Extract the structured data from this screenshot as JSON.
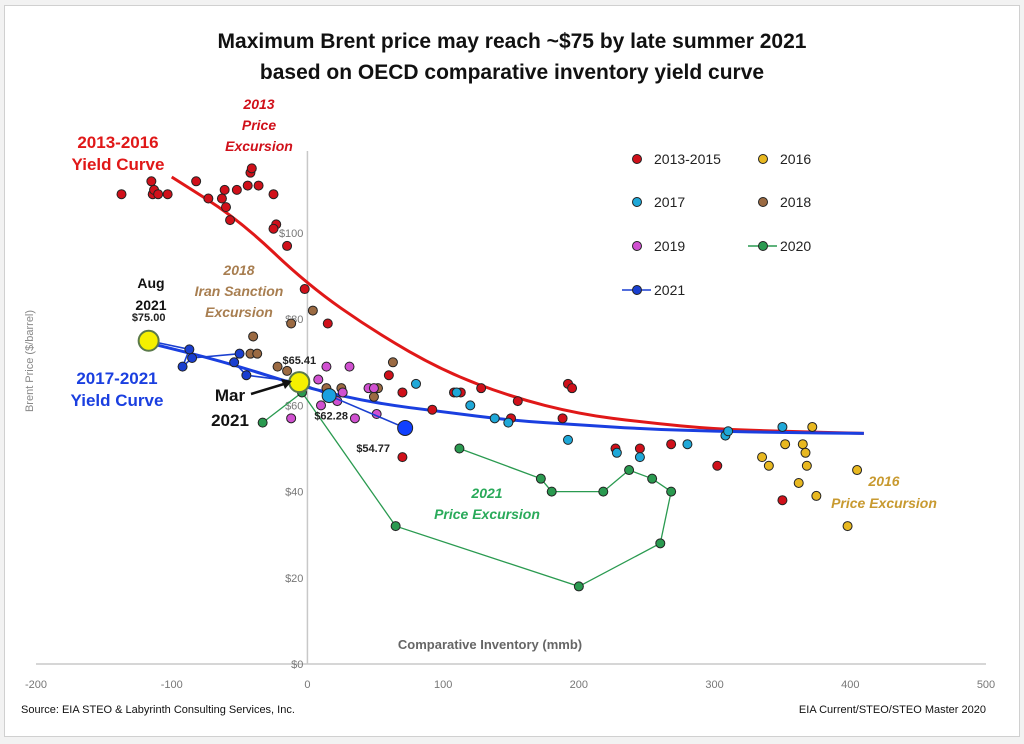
{
  "chart_data": {
    "type": "scatter",
    "title": "Maximum Brent price may reach ~$75 by late summer 2021",
    "subtitle": "based on OECD comparative inventory yield curve",
    "xlabel": "Comparative Inventory (mmb)",
    "ylabel": "Brent Price ($/barrel)",
    "xlim": [
      -200,
      500
    ],
    "ylim": [
      0,
      120
    ],
    "x_ticks": [
      -200,
      -100,
      0,
      100,
      200,
      300,
      400,
      500
    ],
    "x_tick_labels": [
      "-200",
      "-100",
      "0",
      "100",
      "200",
      "300",
      "400",
      "500"
    ],
    "y_ticks": [
      0,
      20,
      40,
      60,
      80,
      100
    ],
    "y_tick_labels": [
      "$0",
      "$20",
      "$40",
      "$60",
      "$80",
      "$100"
    ],
    "grid": false,
    "legend_position": "top-right",
    "series": [
      {
        "name": "2013-2015",
        "kind": "points",
        "color": "#d0101a",
        "points": [
          [
            -137,
            109
          ],
          [
            -115,
            112
          ],
          [
            -114,
            109
          ],
          [
            -113,
            110
          ],
          [
            -110,
            109
          ],
          [
            -103,
            109
          ],
          [
            -82,
            112
          ],
          [
            -73,
            108
          ],
          [
            -63,
            108
          ],
          [
            -61,
            110
          ],
          [
            -60,
            106
          ],
          [
            -57,
            103
          ],
          [
            -52,
            110
          ],
          [
            -44,
            111
          ],
          [
            -42,
            114
          ],
          [
            -41,
            115
          ],
          [
            -36,
            111
          ],
          [
            -25,
            109
          ],
          [
            -23,
            102
          ],
          [
            -25,
            101
          ],
          [
            -15,
            97
          ],
          [
            -2,
            87
          ],
          [
            15,
            79
          ],
          [
            60,
            67
          ],
          [
            70,
            63
          ],
          [
            92,
            59
          ],
          [
            108,
            63
          ],
          [
            113,
            63
          ],
          [
            128,
            64
          ],
          [
            150,
            57
          ],
          [
            155,
            61
          ],
          [
            188,
            57
          ],
          [
            192,
            65
          ],
          [
            195,
            64
          ],
          [
            227,
            50
          ],
          [
            245,
            50
          ],
          [
            268,
            51
          ],
          [
            302,
            46
          ],
          [
            350,
            38
          ],
          [
            70,
            48
          ]
        ]
      },
      {
        "name": "2016",
        "kind": "points",
        "color": "#e8b820",
        "points": [
          [
            372,
            55
          ],
          [
            340,
            46
          ],
          [
            335,
            48
          ],
          [
            352,
            51
          ],
          [
            365,
            51
          ],
          [
            367,
            49
          ],
          [
            368,
            46
          ],
          [
            362,
            42
          ],
          [
            375,
            39
          ],
          [
            398,
            32
          ],
          [
            405,
            45
          ]
        ]
      },
      {
        "name": "2017",
        "kind": "points",
        "color": "#1fa8d8",
        "points": [
          [
            80,
            65
          ],
          [
            110,
            63
          ],
          [
            120,
            60
          ],
          [
            138,
            57
          ],
          [
            148,
            56
          ],
          [
            192,
            52
          ],
          [
            228,
            49
          ],
          [
            245,
            48
          ],
          [
            280,
            51
          ],
          [
            308,
            53
          ],
          [
            310,
            54
          ],
          [
            350,
            55
          ]
        ]
      },
      {
        "name": "2018",
        "kind": "points",
        "color": "#9b6a42",
        "points": [
          [
            -40,
            76
          ],
          [
            -42,
            72
          ],
          [
            -37,
            72
          ],
          [
            -22,
            69
          ],
          [
            -15,
            68
          ],
          [
            -12,
            79
          ],
          [
            4,
            82
          ],
          [
            14,
            64
          ],
          [
            49,
            62
          ],
          [
            52,
            64
          ],
          [
            63,
            70
          ],
          [
            25,
            64
          ]
        ]
      },
      {
        "name": "2019",
        "kind": "points",
        "color": "#d050d0",
        "points": [
          [
            -12,
            57
          ],
          [
            8,
            66
          ],
          [
            14,
            69
          ],
          [
            31,
            69
          ],
          [
            26,
            63
          ],
          [
            22,
            61
          ],
          [
            35,
            57
          ],
          [
            45,
            64
          ],
          [
            49,
            64
          ],
          [
            51,
            58
          ],
          [
            10,
            60
          ]
        ]
      },
      {
        "name": "2020",
        "kind": "line",
        "color": "#2a9a50",
        "points": [
          [
            -33,
            56
          ],
          [
            -4,
            63
          ],
          [
            65,
            32
          ],
          [
            200,
            18
          ],
          [
            260,
            28
          ],
          [
            268,
            40
          ],
          [
            254,
            43
          ],
          [
            237,
            45
          ],
          [
            218,
            40
          ],
          [
            180,
            40
          ],
          [
            172,
            43
          ],
          [
            112,
            50
          ]
        ]
      },
      {
        "name": "2021",
        "kind": "line",
        "color": "#1a3fd0",
        "points": [
          [
            -117,
            75.0
          ],
          [
            -87,
            73
          ],
          [
            -92,
            69
          ],
          [
            -85,
            71
          ],
          [
            -50,
            72
          ],
          [
            -54,
            70
          ],
          [
            -45,
            67
          ],
          [
            -6,
            65.41
          ],
          [
            16,
            62.28
          ],
          [
            72,
            54.77
          ]
        ]
      }
    ],
    "curves": [
      {
        "name": "2013-2016 Yield Curve",
        "color": "#e01818",
        "points": [
          [
            -100,
            113
          ],
          [
            -50,
            103
          ],
          [
            0,
            88
          ],
          [
            50,
            77
          ],
          [
            100,
            68
          ],
          [
            150,
            62
          ],
          [
            200,
            58
          ],
          [
            250,
            56
          ],
          [
            300,
            54.5
          ],
          [
            350,
            54
          ],
          [
            410,
            53.5
          ]
        ]
      },
      {
        "name": "2017-2021 Yield Curve",
        "color": "#1a3fe0",
        "points": [
          [
            -117,
            74.5
          ],
          [
            -60,
            70
          ],
          [
            0,
            64
          ],
          [
            50,
            60.5
          ],
          [
            100,
            58.5
          ],
          [
            150,
            56.5
          ],
          [
            200,
            55.5
          ],
          [
            250,
            54.5
          ],
          [
            300,
            54
          ],
          [
            350,
            53.7
          ],
          [
            410,
            53.5
          ]
        ]
      }
    ],
    "point_labels": [
      {
        "text": "$75.00",
        "x": -117,
        "y": 75.0
      },
      {
        "text": "$65.41",
        "x": -6,
        "y": 65.41
      },
      {
        "text": "$62.28",
        "x": 16,
        "y": 62.28
      },
      {
        "text": "$54.77",
        "x": 72,
        "y": 54.77
      }
    ],
    "annotations": [
      {
        "lines": [
          "2013",
          "Price",
          "Excursion"
        ],
        "color": "#d0101a",
        "style": "italic"
      },
      {
        "lines": [
          "2013-2016",
          "Yield Curve"
        ],
        "color": "#e01818",
        "style": "bold"
      },
      {
        "lines": [
          "2018",
          "Iran Sanction",
          "Excursion"
        ],
        "color": "#a87e50",
        "style": "italic"
      },
      {
        "lines": [
          "Aug",
          "2021"
        ],
        "color": "#111111",
        "style": "bold"
      },
      {
        "lines": [
          "2017-2021",
          "Yield Curve"
        ],
        "color": "#1a3fe0",
        "style": "bold"
      },
      {
        "lines": [
          "Mar",
          "2021"
        ],
        "color": "#111111",
        "style": "bold"
      },
      {
        "lines": [
          "2021",
          "Price Excursion"
        ],
        "color": "#2aaa5a",
        "style": "italic"
      },
      {
        "lines": [
          "2016",
          "Price Excursion"
        ],
        "color": "#c89a30",
        "style": "italic"
      }
    ]
  },
  "footer": {
    "source": "Source:  EIA STEO  & Labyrinth Consulting Services, Inc.",
    "path": "EIA Current/STEO/STEO Master 2020"
  }
}
